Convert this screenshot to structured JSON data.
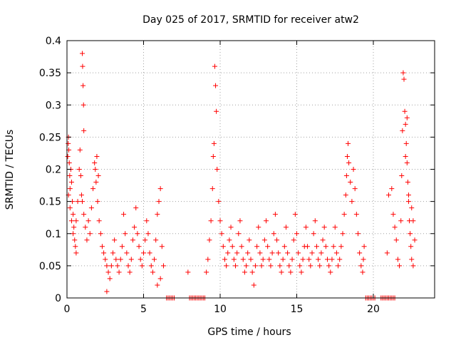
{
  "chart_data": {
    "type": "scatter",
    "title": "Day 025 of 2017, SRMTID for receiver atw2",
    "xlabel": "GPS time / hours",
    "ylabel": "SRMTID / TECUs",
    "xlim": [
      0,
      24
    ],
    "ylim": [
      0,
      0.4
    ],
    "x_ticks": [
      0,
      5,
      10,
      15,
      20
    ],
    "x_tick_labels": [
      "0",
      "5",
      "10",
      "15",
      "20"
    ],
    "y_ticks": [
      0,
      0.05,
      0.1,
      0.15,
      0.2,
      0.25,
      0.3,
      0.35,
      0.4
    ],
    "y_tick_labels": [
      "0",
      "0.05",
      "0.1",
      "0.15",
      "0.2",
      "0.25",
      "0.3",
      "0.35",
      "0.4"
    ],
    "grid": true,
    "marker": "+",
    "colors": {
      "series": "#ff0000",
      "grid": "#a0a0a0",
      "axis": "#000000"
    },
    "series": [
      {
        "name": "atw2",
        "points": [
          [
            0.05,
            0.22
          ],
          [
            0.08,
            0.24
          ],
          [
            0.1,
            0.25
          ],
          [
            0.12,
            0.23
          ],
          [
            0.15,
            0.21
          ],
          [
            0.18,
            0.19
          ],
          [
            0.2,
            0.17
          ],
          [
            0.1,
            0.16
          ],
          [
            0.25,
            0.2
          ],
          [
            0.3,
            0.18
          ],
          [
            0.35,
            0.15
          ],
          [
            0.4,
            0.13
          ],
          [
            0.45,
            0.11
          ],
          [
            0.5,
            0.09
          ],
          [
            0.55,
            0.08
          ],
          [
            0.6,
            0.07
          ],
          [
            0.3,
            0.12
          ],
          [
            0.2,
            0.14
          ],
          [
            0.4,
            0.1
          ],
          [
            0.6,
            0.12
          ],
          [
            0.7,
            0.15
          ],
          [
            0.8,
            0.2
          ],
          [
            0.85,
            0.23
          ],
          [
            0.9,
            0.19
          ],
          [
            0.95,
            0.16
          ],
          [
            1.0,
            0.38
          ],
          [
            1.02,
            0.36
          ],
          [
            1.05,
            0.33
          ],
          [
            1.08,
            0.3
          ],
          [
            1.1,
            0.26
          ],
          [
            1.0,
            0.15
          ],
          [
            1.1,
            0.13
          ],
          [
            1.2,
            0.11
          ],
          [
            1.3,
            0.09
          ],
          [
            1.4,
            0.12
          ],
          [
            1.5,
            0.1
          ],
          [
            1.6,
            0.14
          ],
          [
            1.7,
            0.17
          ],
          [
            1.8,
            0.21
          ],
          [
            1.9,
            0.18
          ],
          [
            2.0,
            0.15
          ],
          [
            2.1,
            0.12
          ],
          [
            2.2,
            0.1
          ],
          [
            2.3,
            0.08
          ],
          [
            1.85,
            0.2
          ],
          [
            1.95,
            0.22
          ],
          [
            2.05,
            0.19
          ],
          [
            2.4,
            0.07
          ],
          [
            2.5,
            0.06
          ],
          [
            2.6,
            0.05
          ],
          [
            2.7,
            0.04
          ],
          [
            2.8,
            0.03
          ],
          [
            2.9,
            0.05
          ],
          [
            3.0,
            0.07
          ],
          [
            3.1,
            0.09
          ],
          [
            3.2,
            0.06
          ],
          [
            3.3,
            0.05
          ],
          [
            3.4,
            0.04
          ],
          [
            3.5,
            0.06
          ],
          [
            3.6,
            0.08
          ],
          [
            3.7,
            0.13
          ],
          [
            3.8,
            0.1
          ],
          [
            3.9,
            0.07
          ],
          [
            4.0,
            0.05
          ],
          [
            4.1,
            0.04
          ],
          [
            4.2,
            0.06
          ],
          [
            4.3,
            0.09
          ],
          [
            4.4,
            0.11
          ],
          [
            4.5,
            0.14
          ],
          [
            4.6,
            0.1
          ],
          [
            4.7,
            0.08
          ],
          [
            4.8,
            0.06
          ],
          [
            4.9,
            0.05
          ],
          [
            5.0,
            0.07
          ],
          [
            5.1,
            0.09
          ],
          [
            5.2,
            0.12
          ],
          [
            5.3,
            0.1
          ],
          [
            5.4,
            0.07
          ],
          [
            5.5,
            0.05
          ],
          [
            5.6,
            0.04
          ],
          [
            5.7,
            0.06
          ],
          [
            5.8,
            0.09
          ],
          [
            5.9,
            0.13
          ],
          [
            6.0,
            0.15
          ],
          [
            6.1,
            0.17
          ],
          [
            6.2,
            0.08
          ],
          [
            6.3,
            0.05
          ],
          [
            6.1,
            0.03
          ],
          [
            5.9,
            0.02
          ],
          [
            2.6,
            0.01
          ],
          [
            6.5,
            0.0
          ],
          [
            6.6,
            0.0
          ],
          [
            6.7,
            0.0
          ],
          [
            6.8,
            0.0
          ],
          [
            6.9,
            0.0
          ],
          [
            7.0,
            0.0
          ],
          [
            7.9,
            0.04
          ],
          [
            8.0,
            0.0
          ],
          [
            8.1,
            0.0
          ],
          [
            8.2,
            0.0
          ],
          [
            8.3,
            0.0
          ],
          [
            8.4,
            0.0
          ],
          [
            8.5,
            0.0
          ],
          [
            8.6,
            0.0
          ],
          [
            8.7,
            0.0
          ],
          [
            8.8,
            0.0
          ],
          [
            8.9,
            0.0
          ],
          [
            9.0,
            0.0
          ],
          [
            9.1,
            0.04
          ],
          [
            9.2,
            0.06
          ],
          [
            9.3,
            0.09
          ],
          [
            9.4,
            0.12
          ],
          [
            9.5,
            0.17
          ],
          [
            9.55,
            0.22
          ],
          [
            9.6,
            0.24
          ],
          [
            9.65,
            0.36
          ],
          [
            9.7,
            0.33
          ],
          [
            9.75,
            0.29
          ],
          [
            9.8,
            0.2
          ],
          [
            9.9,
            0.15
          ],
          [
            10.0,
            0.12
          ],
          [
            10.1,
            0.1
          ],
          [
            10.2,
            0.08
          ],
          [
            10.3,
            0.06
          ],
          [
            10.4,
            0.05
          ],
          [
            10.5,
            0.07
          ],
          [
            10.6,
            0.09
          ],
          [
            10.7,
            0.11
          ],
          [
            10.8,
            0.08
          ],
          [
            10.9,
            0.06
          ],
          [
            11.0,
            0.05
          ],
          [
            11.1,
            0.07
          ],
          [
            11.2,
            0.1
          ],
          [
            11.3,
            0.12
          ],
          [
            11.4,
            0.08
          ],
          [
            11.5,
            0.06
          ],
          [
            11.6,
            0.04
          ],
          [
            11.7,
            0.05
          ],
          [
            11.8,
            0.07
          ],
          [
            11.9,
            0.09
          ],
          [
            12.0,
            0.06
          ],
          [
            12.1,
            0.04
          ],
          [
            12.2,
            0.02
          ],
          [
            12.3,
            0.05
          ],
          [
            12.4,
            0.08
          ],
          [
            12.5,
            0.11
          ],
          [
            12.6,
            0.07
          ],
          [
            12.7,
            0.05
          ],
          [
            12.8,
            0.06
          ],
          [
            12.9,
            0.09
          ],
          [
            13.0,
            0.12
          ],
          [
            13.1,
            0.08
          ],
          [
            13.2,
            0.06
          ],
          [
            13.3,
            0.05
          ],
          [
            13.4,
            0.07
          ],
          [
            13.5,
            0.1
          ],
          [
            13.6,
            0.13
          ],
          [
            13.7,
            0.09
          ],
          [
            13.8,
            0.07
          ],
          [
            13.9,
            0.05
          ],
          [
            14.0,
            0.04
          ],
          [
            14.1,
            0.06
          ],
          [
            14.2,
            0.08
          ],
          [
            14.3,
            0.11
          ],
          [
            14.4,
            0.07
          ],
          [
            14.5,
            0.05
          ],
          [
            14.6,
            0.04
          ],
          [
            14.7,
            0.06
          ],
          [
            14.8,
            0.09
          ],
          [
            14.9,
            0.13
          ],
          [
            15.0,
            0.1
          ],
          [
            15.1,
            0.07
          ],
          [
            15.2,
            0.05
          ],
          [
            15.3,
            0.04
          ],
          [
            15.4,
            0.06
          ],
          [
            15.5,
            0.08
          ],
          [
            15.6,
            0.11
          ],
          [
            15.7,
            0.08
          ],
          [
            15.8,
            0.06
          ],
          [
            15.9,
            0.05
          ],
          [
            16.0,
            0.07
          ],
          [
            16.1,
            0.1
          ],
          [
            16.2,
            0.12
          ],
          [
            16.3,
            0.08
          ],
          [
            16.4,
            0.06
          ],
          [
            16.5,
            0.05
          ],
          [
            16.6,
            0.07
          ],
          [
            16.7,
            0.09
          ],
          [
            16.8,
            0.11
          ],
          [
            16.9,
            0.08
          ],
          [
            17.0,
            0.06
          ],
          [
            17.1,
            0.05
          ],
          [
            17.2,
            0.04
          ],
          [
            17.3,
            0.06
          ],
          [
            17.4,
            0.08
          ],
          [
            17.5,
            0.11
          ],
          [
            17.6,
            0.07
          ],
          [
            17.7,
            0.05
          ],
          [
            17.8,
            0.06
          ],
          [
            17.9,
            0.08
          ],
          [
            18.0,
            0.1
          ],
          [
            18.1,
            0.13
          ],
          [
            18.2,
            0.16
          ],
          [
            18.25,
            0.19
          ],
          [
            18.3,
            0.22
          ],
          [
            18.35,
            0.24
          ],
          [
            18.4,
            0.21
          ],
          [
            18.5,
            0.18
          ],
          [
            18.6,
            0.15
          ],
          [
            18.7,
            0.2
          ],
          [
            18.8,
            0.17
          ],
          [
            18.9,
            0.13
          ],
          [
            19.0,
            0.1
          ],
          [
            19.1,
            0.07
          ],
          [
            19.2,
            0.05
          ],
          [
            19.3,
            0.04
          ],
          [
            19.35,
            0.06
          ],
          [
            19.4,
            0.08
          ],
          [
            19.5,
            0.0
          ],
          [
            19.6,
            0.0
          ],
          [
            19.7,
            0.0
          ],
          [
            19.8,
            0.0
          ],
          [
            19.9,
            0.0
          ],
          [
            20.0,
            0.0
          ],
          [
            20.1,
            0.0
          ],
          [
            20.5,
            0.0
          ],
          [
            20.6,
            0.0
          ],
          [
            20.7,
            0.0
          ],
          [
            20.8,
            0.0
          ],
          [
            20.9,
            0.0
          ],
          [
            21.0,
            0.0
          ],
          [
            21.1,
            0.0
          ],
          [
            21.2,
            0.0
          ],
          [
            21.3,
            0.0
          ],
          [
            21.4,
            0.0
          ],
          [
            20.9,
            0.07
          ],
          [
            21.0,
            0.16
          ],
          [
            21.2,
            0.17
          ],
          [
            21.3,
            0.13
          ],
          [
            21.4,
            0.11
          ],
          [
            21.5,
            0.09
          ],
          [
            21.6,
            0.06
          ],
          [
            21.7,
            0.05
          ],
          [
            21.8,
            0.12
          ],
          [
            21.85,
            0.19
          ],
          [
            21.9,
            0.26
          ],
          [
            21.95,
            0.35
          ],
          [
            22.0,
            0.34
          ],
          [
            22.05,
            0.29
          ],
          [
            22.1,
            0.27
          ],
          [
            22.15,
            0.24
          ],
          [
            22.2,
            0.21
          ],
          [
            22.25,
            0.18
          ],
          [
            22.3,
            0.15
          ],
          [
            22.35,
            0.12
          ],
          [
            22.4,
            0.1
          ],
          [
            22.45,
            0.08
          ],
          [
            22.5,
            0.06
          ],
          [
            22.6,
            0.05
          ],
          [
            22.7,
            0.09
          ],
          [
            22.5,
            0.14
          ],
          [
            22.6,
            0.12
          ],
          [
            22.2,
            0.28
          ],
          [
            22.1,
            0.22
          ],
          [
            22.3,
            0.16
          ]
        ]
      }
    ]
  }
}
